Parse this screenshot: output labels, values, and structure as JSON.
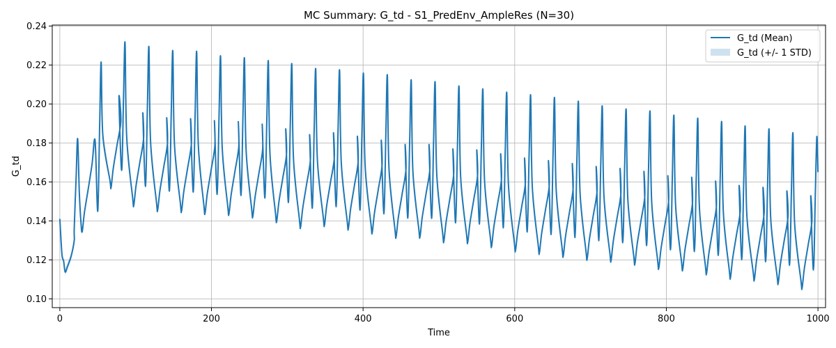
{
  "colors": {
    "mean_line": "#1f77b4",
    "std_band": "#1f77b4",
    "grid": "#b0b0b0"
  },
  "chart_data": {
    "type": "line",
    "title": "MC Summary: G_td - S1_PredEnv_AmpleRes (N=30)",
    "xlabel": "Time",
    "ylabel": "G_td",
    "xlim": [
      -10,
      1010
    ],
    "ylim": [
      0.0955,
      0.2405
    ],
    "x_ticks": [
      0,
      200,
      400,
      600,
      800,
      1000
    ],
    "x_tick_labels": [
      "0",
      "200",
      "400",
      "600",
      "800",
      "1000"
    ],
    "y_ticks": [
      0.1,
      0.12,
      0.14,
      0.16,
      0.18,
      0.2,
      0.22,
      0.24
    ],
    "y_tick_labels": [
      "0.10",
      "0.12",
      "0.14",
      "0.16",
      "0.18",
      "0.20",
      "0.22",
      "0.24"
    ],
    "grid": true,
    "legend_position": "top-right",
    "legend": [
      "G_td (Mean)",
      "G_td (+/- 1 STD)"
    ],
    "series": [
      {
        "name": "G_td (Mean)",
        "start": [
          [
            0,
            0.141
          ],
          [
            1,
            0.134
          ],
          [
            3,
            0.122
          ],
          [
            5,
            0.1195
          ],
          [
            7,
            0.1138
          ],
          [
            10,
            0.1165
          ],
          [
            15,
            0.122
          ],
          [
            19,
            0.13
          ]
        ],
        "peaks": [
          [
            23.5,
            0.1822
          ],
          [
            54.5,
            0.2215
          ],
          [
            86,
            0.2315
          ],
          [
            117.5,
            0.2293
          ],
          [
            149,
            0.2272
          ],
          [
            180.5,
            0.2268
          ],
          [
            212,
            0.2245
          ],
          [
            243.5,
            0.2235
          ],
          [
            275,
            0.222
          ],
          [
            306,
            0.2205
          ],
          [
            337.5,
            0.218
          ],
          [
            369,
            0.2173
          ],
          [
            400.5,
            0.2156
          ],
          [
            432,
            0.2148
          ],
          [
            463.5,
            0.2122
          ],
          [
            495,
            0.2112
          ],
          [
            526.5,
            0.209
          ],
          [
            558,
            0.2075
          ],
          [
            589.5,
            0.2058
          ],
          [
            621,
            0.2045
          ],
          [
            652.5,
            0.2031
          ],
          [
            684,
            0.2012
          ],
          [
            715.5,
            0.1988
          ],
          [
            747,
            0.1972
          ],
          [
            778.5,
            0.1962
          ],
          [
            810,
            0.194
          ],
          [
            841.5,
            0.1925
          ],
          [
            873,
            0.1908
          ],
          [
            904,
            0.1885
          ],
          [
            935.5,
            0.187
          ],
          [
            967,
            0.185
          ],
          [
            998.5,
            0.1832
          ]
        ],
        "troughs": [
          [
            29.5,
            0.1345
          ],
          [
            67.5,
            0.157
          ],
          [
            97.5,
            0.148
          ],
          [
            129,
            0.1455
          ],
          [
            160.5,
            0.145
          ],
          [
            191.5,
            0.144
          ],
          [
            223,
            0.1435
          ],
          [
            254.5,
            0.1422
          ],
          [
            286,
            0.1398
          ],
          [
            317.5,
            0.1368
          ],
          [
            349,
            0.1378
          ],
          [
            380.5,
            0.136
          ],
          [
            412,
            0.134
          ],
          [
            443.5,
            0.1318
          ],
          [
            475,
            0.1318
          ],
          [
            506.5,
            0.1295
          ],
          [
            538,
            0.129
          ],
          [
            569.5,
            0.127
          ],
          [
            601,
            0.1248
          ],
          [
            632.5,
            0.1235
          ],
          [
            664,
            0.122
          ],
          [
            695.5,
            0.1205
          ],
          [
            727,
            0.1195
          ],
          [
            758.5,
            0.118
          ],
          [
            790,
            0.1158
          ],
          [
            821.5,
            0.115
          ],
          [
            853,
            0.113
          ],
          [
            884.5,
            0.1108
          ],
          [
            916,
            0.1098
          ],
          [
            947.5,
            0.108
          ],
          [
            979,
            0.1055
          ]
        ],
        "end": [
          1000,
          0.165
        ]
      }
    ],
    "std_band_half_width": 0.0018
  }
}
